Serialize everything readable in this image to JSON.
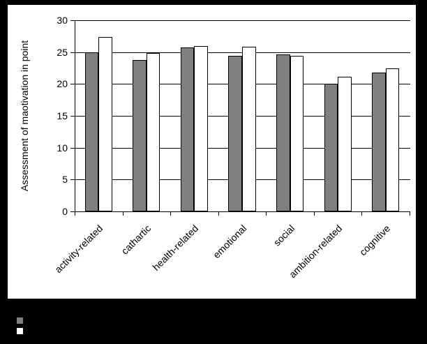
{
  "page": {
    "background_color": "#000000",
    "chart_background_color": "#ffffff"
  },
  "chart_data": {
    "type": "bar",
    "title": "",
    "xlabel": "",
    "ylabel": "Assessment of maotivation in point",
    "categories": [
      "activity-related",
      "cathartic",
      "health-related",
      "emotional",
      "social",
      "ambition-related",
      "cognitive"
    ],
    "series": [
      {
        "name": "gray",
        "color": "#808080",
        "values": [
          25.0,
          23.8,
          25.7,
          24.4,
          24.6,
          20.0,
          21.8
        ]
      },
      {
        "name": "white",
        "color": "#ffffff",
        "values": [
          27.4,
          24.9,
          25.9,
          25.8,
          24.4,
          21.1,
          22.4
        ]
      }
    ],
    "ylim": [
      0,
      30
    ],
    "yticks": [
      0,
      5,
      10,
      15,
      20,
      25,
      30
    ],
    "grid": true,
    "gridline_color": "#000000",
    "axis_color": "#000000",
    "legend_position": "bottom-left-outside"
  },
  "legend": {
    "items": [
      {
        "color": "#808080",
        "label": ""
      },
      {
        "color": "#ffffff",
        "label": ""
      }
    ]
  }
}
